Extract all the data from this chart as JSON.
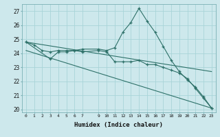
{
  "title": "",
  "xlabel": "Humidex (Indice chaleur)",
  "background_color": "#cde8ec",
  "grid_color": "#a8d4d8",
  "line_color": "#2d7068",
  "xlim": [
    -0.5,
    23.5
  ],
  "ylim": [
    19.8,
    27.5
  ],
  "yticks": [
    20,
    21,
    22,
    23,
    24,
    25,
    26,
    27
  ],
  "xticks": [
    0,
    1,
    2,
    3,
    4,
    5,
    6,
    7,
    9,
    10,
    11,
    12,
    13,
    14,
    15,
    16,
    17,
    18,
    19,
    20,
    21,
    22,
    23
  ],
  "series1_x": [
    0,
    1,
    2,
    3,
    4,
    5,
    6,
    7,
    9,
    10,
    11,
    12,
    13,
    14,
    15,
    16,
    17,
    18,
    19,
    20,
    21,
    22,
    23
  ],
  "series1_y": [
    24.8,
    24.6,
    24.2,
    24.1,
    24.2,
    24.2,
    24.2,
    24.3,
    24.3,
    24.2,
    24.4,
    25.5,
    26.2,
    27.2,
    26.3,
    25.5,
    24.5,
    23.5,
    22.7,
    22.1,
    21.6,
    20.9,
    20.1
  ],
  "series2_x": [
    0,
    3,
    4,
    5,
    6,
    7,
    9,
    10,
    11,
    12,
    13,
    14,
    15,
    16,
    17,
    18,
    19,
    20,
    21,
    22,
    23
  ],
  "series2_y": [
    24.8,
    23.6,
    24.1,
    24.1,
    24.2,
    24.1,
    24.2,
    24.1,
    23.4,
    23.4,
    23.4,
    23.5,
    23.2,
    23.2,
    23.0,
    22.8,
    22.6,
    22.2,
    21.5,
    20.8,
    20.1
  ],
  "series3_x": [
    0,
    23
  ],
  "series3_y": [
    24.8,
    22.7
  ],
  "series4_x": [
    0,
    23
  ],
  "series4_y": [
    24.2,
    20.1
  ]
}
